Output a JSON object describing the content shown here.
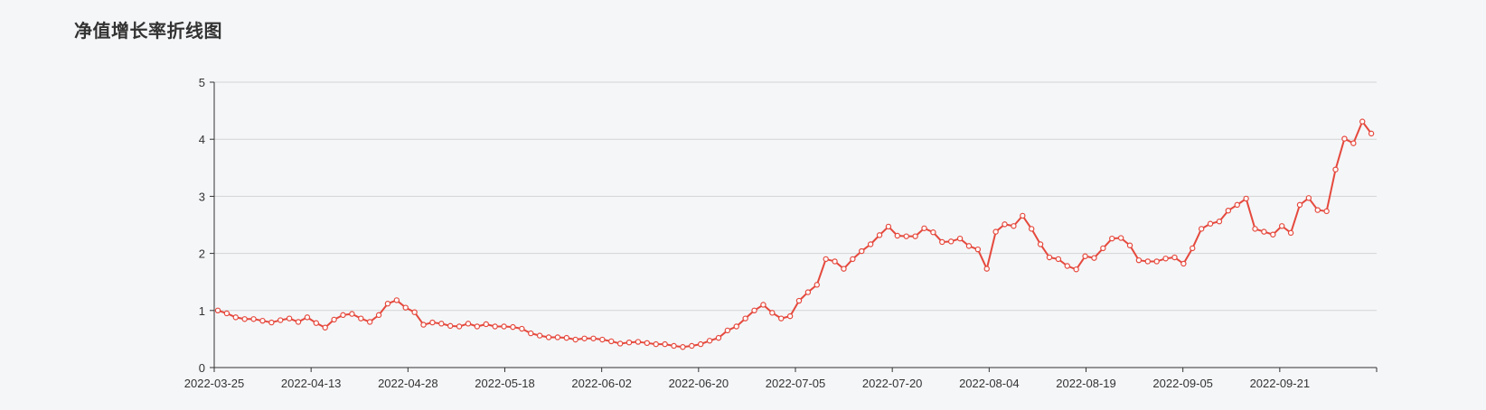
{
  "page": {
    "title": "净值增长率折线图"
  },
  "colors": {
    "line": "#e5493d",
    "point_fill": "#ffffff",
    "grid": "#d4d4d4",
    "axis": "#333333",
    "background": "#f5f6f8"
  },
  "chart_data": {
    "type": "line",
    "title": "净值增长率折线图",
    "xlabel": "",
    "ylabel": "",
    "ylim": [
      0,
      5
    ],
    "y_ticks": [
      "0",
      "1",
      "2",
      "3",
      "4",
      "5"
    ],
    "x_ticks": [
      "2022-03-25",
      "2022-04-13",
      "2022-04-28",
      "2022-05-18",
      "2022-06-02",
      "2022-06-20",
      "2022-07-05",
      "2022-07-20",
      "2022-08-04",
      "2022-08-19",
      "2022-09-05",
      "2022-09-21"
    ],
    "grid": true,
    "legend": "none",
    "series": [
      {
        "values": [
          1.0,
          0.95,
          0.88,
          0.85,
          0.85,
          0.82,
          0.79,
          0.83,
          0.86,
          0.8,
          0.88,
          0.78,
          0.7,
          0.84,
          0.92,
          0.94,
          0.86,
          0.8,
          0.92,
          1.12,
          1.18,
          1.05,
          0.97,
          0.75,
          0.79,
          0.77,
          0.73,
          0.72,
          0.77,
          0.72,
          0.76,
          0.72,
          0.72,
          0.71,
          0.68,
          0.6,
          0.56,
          0.53,
          0.53,
          0.52,
          0.49,
          0.51,
          0.51,
          0.49,
          0.46,
          0.42,
          0.44,
          0.45,
          0.43,
          0.41,
          0.41,
          0.38,
          0.36,
          0.38,
          0.41,
          0.47,
          0.52,
          0.65,
          0.72,
          0.86,
          1.0,
          1.1,
          0.96,
          0.86,
          0.9,
          1.17,
          1.32,
          1.45,
          1.9,
          1.86,
          1.73,
          1.9,
          2.04,
          2.16,
          2.32,
          2.47,
          2.31,
          2.3,
          2.3,
          2.44,
          2.37,
          2.2,
          2.21,
          2.26,
          2.13,
          2.07,
          1.73,
          2.38,
          2.51,
          2.48,
          2.66,
          2.43,
          2.16,
          1.93,
          1.9,
          1.78,
          1.72,
          1.95,
          1.92,
          2.09,
          2.26,
          2.27,
          2.14,
          1.88,
          1.86,
          1.86,
          1.91,
          1.93,
          1.82,
          2.09,
          2.43,
          2.52,
          2.56,
          2.75,
          2.85,
          2.96,
          2.43,
          2.38,
          2.33,
          2.48,
          2.36,
          2.85,
          2.97,
          2.76,
          2.74,
          3.47,
          4.01,
          3.93,
          4.31,
          4.1
        ]
      }
    ]
  }
}
